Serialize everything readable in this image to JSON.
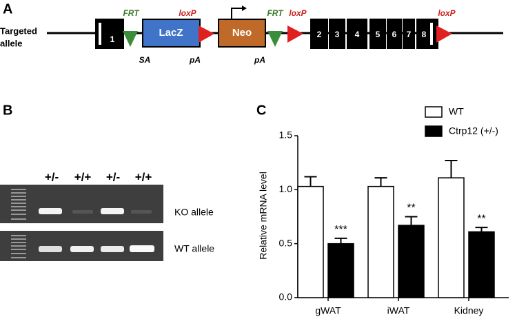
{
  "panel_a": {
    "label": "A",
    "allele": [
      "Targeted",
      "allele"
    ],
    "exons": [
      "1",
      "2",
      "3",
      "4",
      "5",
      "6",
      "7",
      "8"
    ],
    "frt": [
      "FRT",
      "FRT"
    ],
    "loxp": [
      "loxP",
      "loxP",
      "loxP"
    ],
    "cassettes": [
      "LacZ",
      "Neo"
    ],
    "sites": [
      "SA",
      "pA",
      "pA"
    ]
  },
  "panel_b": {
    "label": "B",
    "lanes": [
      "+/-",
      "+/+",
      "+/-",
      "+/+"
    ],
    "rows": [
      "KO allele",
      "WT allele"
    ]
  },
  "chart_data": {
    "type": "bar",
    "label": "C",
    "y_label": "Relative mRNA level",
    "categories": [
      "gWAT",
      "iWAT",
      "Kidney"
    ],
    "series": [
      {
        "name": "WT",
        "color": "#ffffff",
        "values": [
          1.03,
          1.03,
          1.11
        ],
        "errors": [
          0.09,
          0.08,
          0.16
        ]
      },
      {
        "name": "Ctrp12 (+/-)",
        "color": "#000000",
        "values": [
          0.5,
          0.67,
          0.61
        ],
        "errors": [
          0.05,
          0.08,
          0.04
        ],
        "annotations": [
          "***",
          "**",
          "**"
        ]
      }
    ],
    "ylim": [
      0,
      1.5
    ],
    "yticks": [
      {
        "value": 0,
        "label": "0.0"
      },
      0.5,
      {
        "value": 1,
        "label": "1.0"
      },
      1.5
    ]
  }
}
